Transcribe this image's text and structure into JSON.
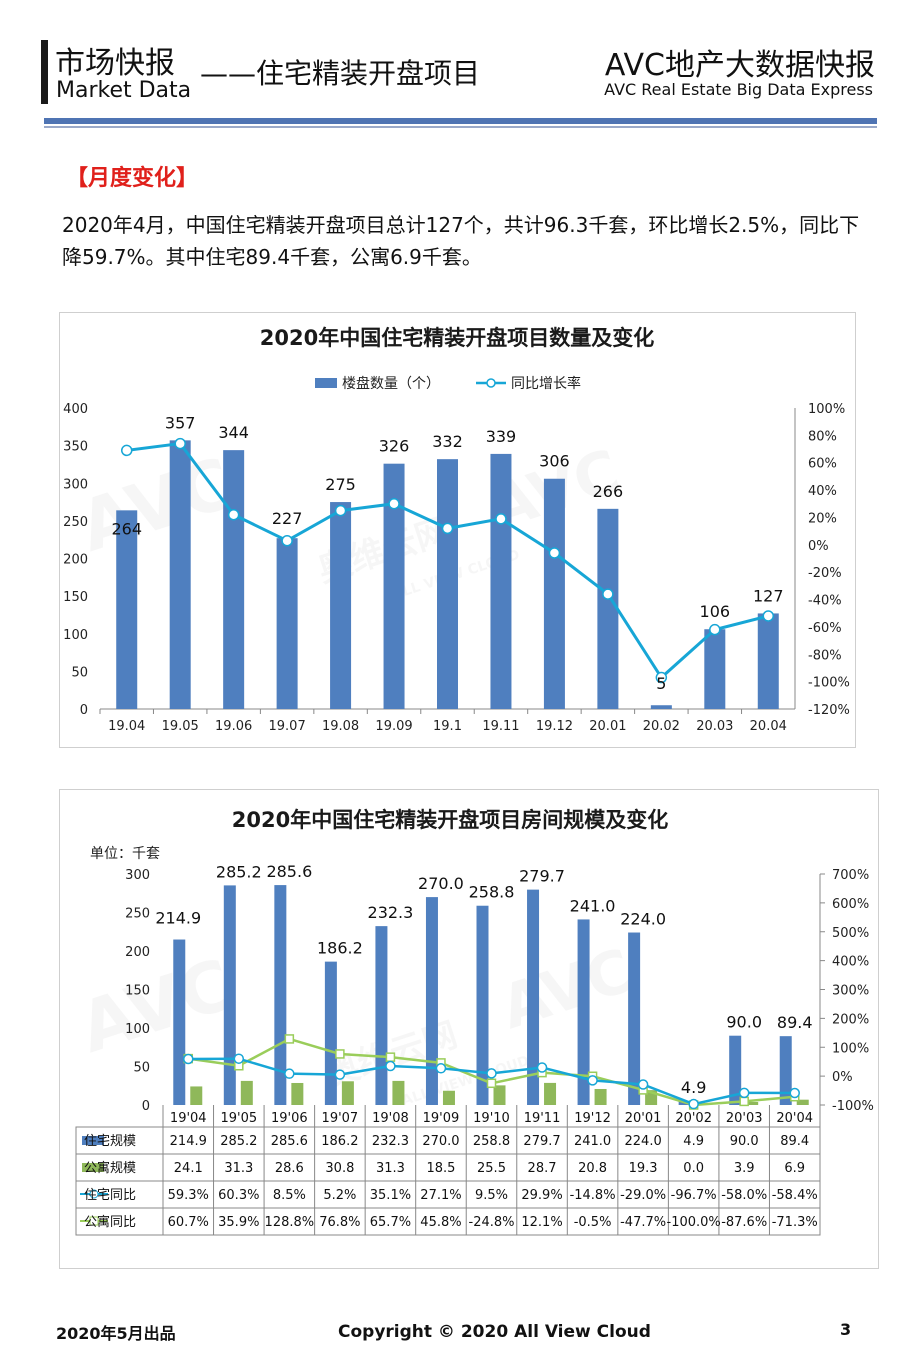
{
  "header": {
    "left_title": "市场快报",
    "left_subtitle": "Market Data",
    "middle_title": "——住宅精装开盘项目",
    "right_title": "AVC地产大数据快报",
    "right_subtitle": "AVC  Real Estate Big Data Express"
  },
  "section_title": "【月度变化】",
  "intro_text": "2020年4月，中国住宅精装开盘项目总计127个，共计96.3千套，环比增长2.5%，同比下降59.7%。其中住宅89.4千套，公寓6.9千套。",
  "watermark": {
    "brand": "AVC",
    "cn": "奥维云网",
    "en": "ALL VIEW CLOUD"
  },
  "colors": {
    "bar_blue": "#4f7fbf",
    "bar_green": "#8fb85a",
    "line_cyan": "#17a6d6",
    "line_green": "#9acd5a",
    "accent_red": "#e0201b",
    "rule_blue": "#4f74b3"
  },
  "chart_data": [
    {
      "type": "bar+line",
      "title": "2020年中国住宅精装开盘项目数量及变化",
      "categories": [
        "19.04",
        "19.05",
        "19.06",
        "19.07",
        "19.08",
        "19.09",
        "19.1",
        "19.11",
        "19.12",
        "20.01",
        "20.02",
        "20.03",
        "20.04"
      ],
      "series": [
        {
          "name": "楼盘数量（个）",
          "type": "bar",
          "axis": "left",
          "values": [
            264,
            357,
            344,
            227,
            275,
            326,
            332,
            339,
            306,
            266,
            5,
            106,
            127
          ]
        },
        {
          "name": "同比增长率",
          "type": "line",
          "axis": "right",
          "values": [
            69,
            74,
            22,
            3,
            25,
            30,
            12,
            19,
            -6,
            -36,
            -97,
            -62,
            -52
          ]
        }
      ],
      "y_left": {
        "min": 0,
        "max": 400,
        "ticks": [
          0,
          50,
          100,
          150,
          200,
          250,
          300,
          350,
          400
        ]
      },
      "y_right": {
        "min": -120,
        "max": 100,
        "ticks": [
          "100%",
          "80%",
          "60%",
          "40%",
          "20%",
          "0%",
          "-20%",
          "-40%",
          "-60%",
          "-80%",
          "-100%",
          "-120%"
        ]
      },
      "legend": "top"
    },
    {
      "type": "bar+line+table",
      "title": "2020年中国住宅精装开盘项目房间规模及变化",
      "unit": "单位：千套",
      "categories": [
        "19'04",
        "19'05",
        "19'06",
        "19'07",
        "19'08",
        "19'09",
        "19'10",
        "19'11",
        "19'12",
        "20'01",
        "20'02",
        "20'03",
        "20'04"
      ],
      "series": [
        {
          "name": "住宅规模",
          "type": "bar",
          "axis": "left",
          "values": [
            214.9,
            285.2,
            285.6,
            186.2,
            232.3,
            270.0,
            258.8,
            279.7,
            241.0,
            224.0,
            4.9,
            90.0,
            89.4
          ],
          "labels": [
            "214.9",
            "285.2",
            "285.6",
            "186.2",
            "232.3",
            "270.0",
            "258.8",
            "279.7",
            "241.0",
            "224.0",
            "4.9",
            "90.0",
            "89.4"
          ]
        },
        {
          "name": "公寓规模",
          "type": "bar",
          "axis": "left",
          "values": [
            24.1,
            31.3,
            28.6,
            30.8,
            31.3,
            18.5,
            25.5,
            28.7,
            20.8,
            19.3,
            0.0,
            3.9,
            6.9
          ],
          "labels": [
            "24.1",
            "31.3",
            "28.6",
            "30.8",
            "31.3",
            "18.5",
            "25.5",
            "28.7",
            "20.8",
            "19.3",
            "0.0",
            "3.9",
            "6.9"
          ]
        },
        {
          "name": "住宅同比",
          "type": "line",
          "axis": "right",
          "values": [
            59.3,
            60.3,
            8.5,
            5.2,
            35.1,
            27.1,
            9.5,
            29.9,
            -14.8,
            -29.0,
            -96.7,
            -58.0,
            -58.4
          ],
          "labels": [
            "59.3%",
            "60.3%",
            "8.5%",
            "5.2%",
            "35.1%",
            "27.1%",
            "9.5%",
            "29.9%",
            "-14.8%",
            "-29.0%",
            "-96.7%",
            "-58.0%",
            "-58.4%"
          ]
        },
        {
          "name": "公寓同比",
          "type": "line",
          "axis": "right",
          "values": [
            60.7,
            35.9,
            128.8,
            76.8,
            65.7,
            45.8,
            -24.8,
            12.1,
            -0.5,
            -47.7,
            -100.0,
            -87.6,
            -71.3
          ],
          "labels": [
            "60.7%",
            "35.9%",
            "128.8%",
            "76.8%",
            "65.7%",
            "45.8%",
            "-24.8%",
            "12.1%",
            "-0.5%",
            "-47.7%",
            "-100.0%",
            "-87.6%",
            "-71.3%"
          ]
        }
      ],
      "y_left": {
        "min": 0,
        "max": 300,
        "ticks": [
          0,
          50,
          100,
          150,
          200,
          250,
          300
        ]
      },
      "y_right": {
        "min": -100,
        "max": 700,
        "ticks": [
          "700%",
          "600%",
          "500%",
          "400%",
          "300%",
          "200%",
          "100%",
          "0%",
          "-100%"
        ]
      }
    }
  ],
  "footer": {
    "left": "2020年5月出品",
    "center": "Copyright © 2020  All View Cloud",
    "page": "3"
  }
}
